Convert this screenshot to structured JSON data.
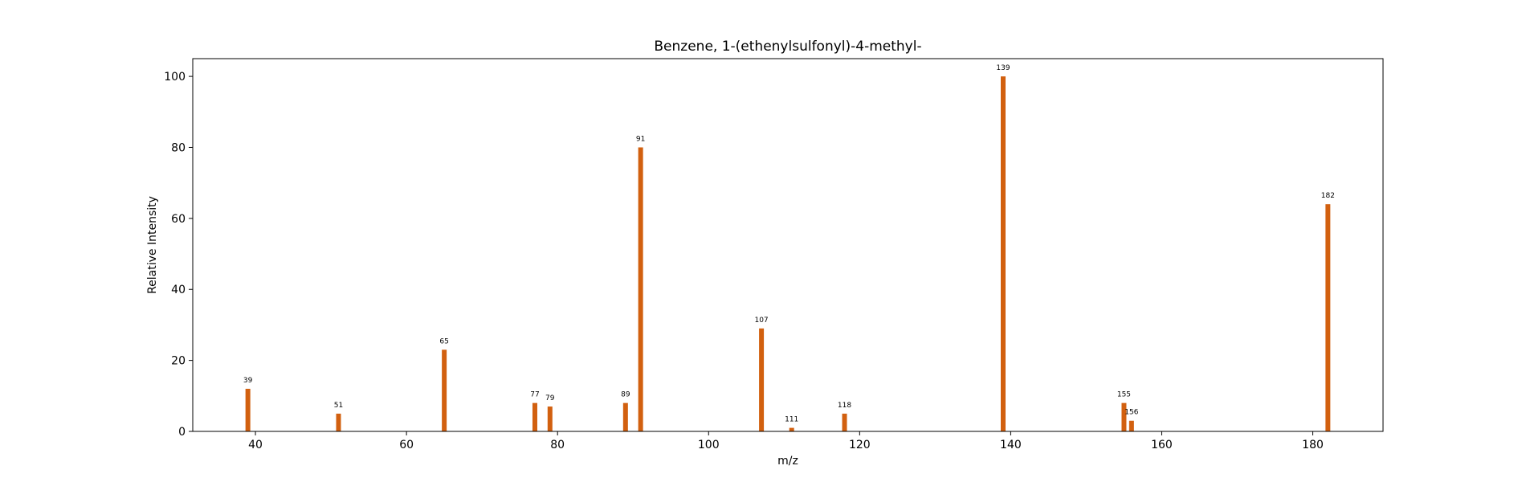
{
  "chart_data": {
    "type": "bar",
    "title": "Benzene, 1-(ethenylsulfonyl)-4-methyl-",
    "xlabel": "m/z",
    "ylabel": "Relative Intensity",
    "xlim": [
      31.7,
      189.3
    ],
    "ylim": [
      0,
      105
    ],
    "x_ticks": [
      40,
      60,
      80,
      100,
      120,
      140,
      160,
      180
    ],
    "y_ticks": [
      0,
      20,
      40,
      60,
      80,
      100
    ],
    "grid": false,
    "bar_color": "#d2600f",
    "peaks": [
      {
        "mz": 39,
        "intensity": 12,
        "label": "39"
      },
      {
        "mz": 51,
        "intensity": 5,
        "label": "51"
      },
      {
        "mz": 65,
        "intensity": 23,
        "label": "65"
      },
      {
        "mz": 77,
        "intensity": 8,
        "label": "77"
      },
      {
        "mz": 79,
        "intensity": 7,
        "label": "79"
      },
      {
        "mz": 89,
        "intensity": 8,
        "label": "89"
      },
      {
        "mz": 91,
        "intensity": 80,
        "label": "91"
      },
      {
        "mz": 107,
        "intensity": 29,
        "label": "107"
      },
      {
        "mz": 111,
        "intensity": 1,
        "label": "111"
      },
      {
        "mz": 118,
        "intensity": 5,
        "label": "118"
      },
      {
        "mz": 139,
        "intensity": 100,
        "label": "139"
      },
      {
        "mz": 155,
        "intensity": 8,
        "label": "155"
      },
      {
        "mz": 156,
        "intensity": 3,
        "label": "156"
      },
      {
        "mz": 182,
        "intensity": 64,
        "label": "182"
      }
    ]
  }
}
